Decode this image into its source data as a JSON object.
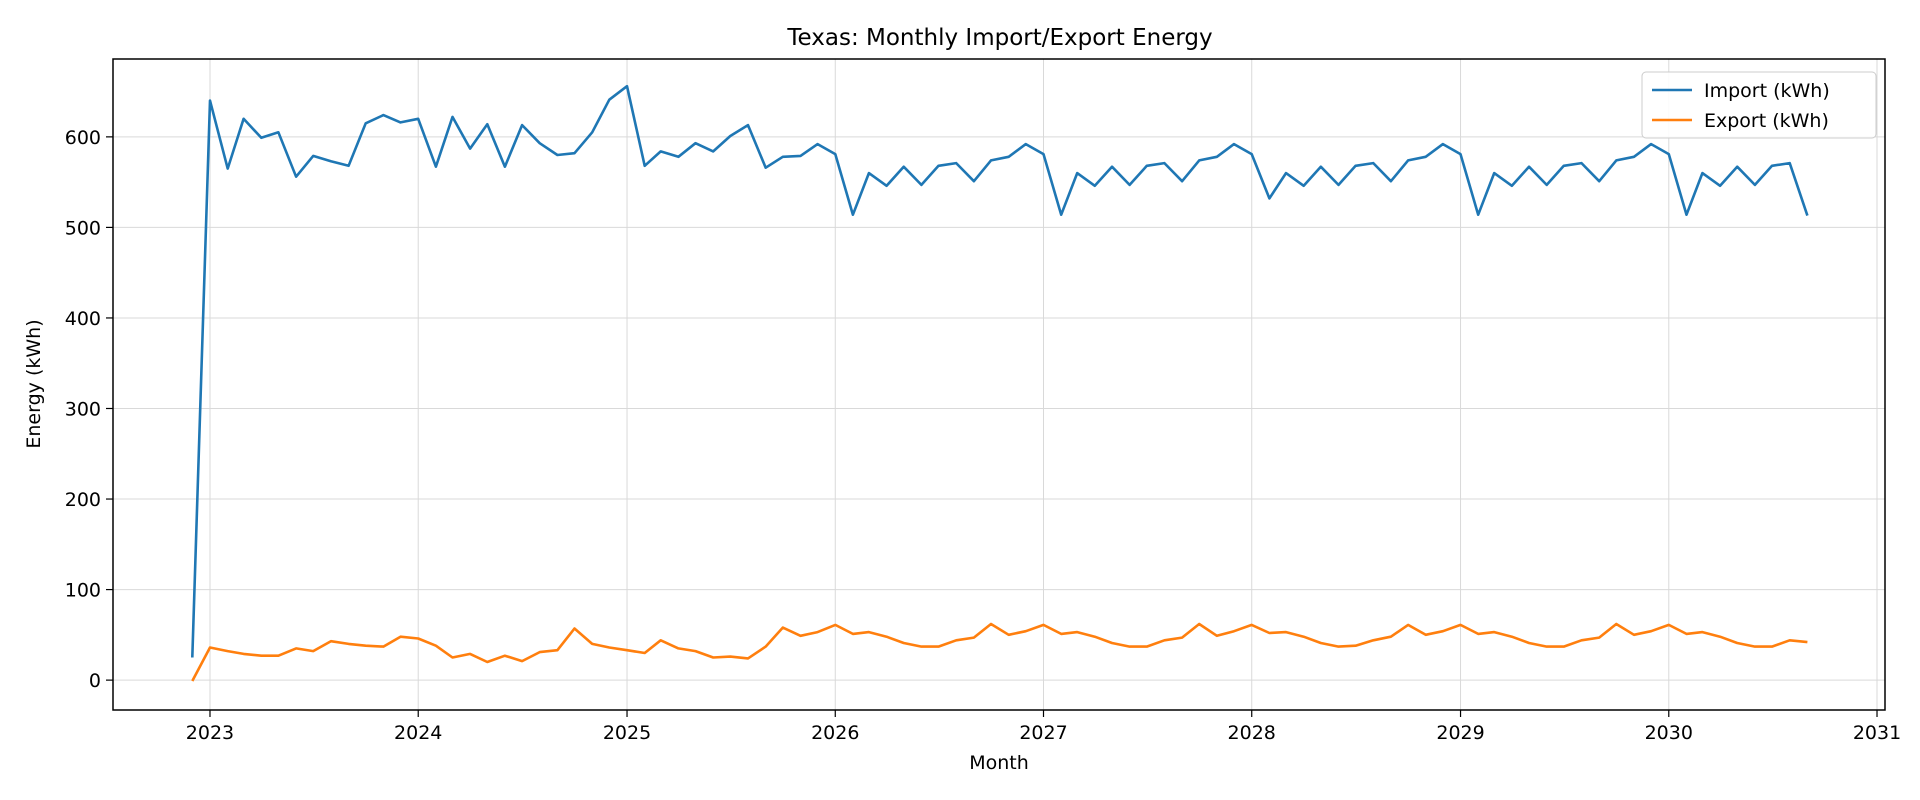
{
  "chart_data": {
    "type": "line",
    "title": "Texas: Monthly Import/Export Energy",
    "xlabel": "Month",
    "ylabel": "Energy (kWh)",
    "xlim": [
      "2022-07-15",
      "2031-01-15"
    ],
    "ylim": [
      -33,
      686
    ],
    "x_ticks": [
      "2023",
      "2024",
      "2025",
      "2026",
      "2027",
      "2028",
      "2029",
      "2030",
      "2031"
    ],
    "y_ticks": [
      0,
      100,
      200,
      300,
      400,
      500,
      600
    ],
    "grid": true,
    "legend_position": "top-right",
    "start_month": "2022-12",
    "series": [
      {
        "name": "Import (kWh)",
        "color": "#1f77b4",
        "values": [
          25,
          640,
          565,
          620,
          599,
          605,
          556,
          579,
          573,
          568,
          615,
          624,
          616,
          620,
          567,
          622,
          587,
          614,
          567,
          613,
          593,
          580,
          582,
          605,
          641,
          656,
          568,
          584,
          578,
          593,
          584,
          601,
          613,
          566,
          578,
          579,
          592,
          581,
          514,
          560,
          546,
          567,
          547,
          568,
          571,
          551,
          574,
          578,
          592,
          581,
          514,
          560,
          546,
          567,
          547,
          568,
          571,
          551,
          574,
          578,
          592,
          581,
          532,
          560,
          546,
          567,
          547,
          568,
          571,
          551,
          574,
          578,
          592,
          581,
          514,
          560,
          546,
          567,
          547,
          568,
          571,
          551,
          574,
          578,
          592,
          581,
          514,
          560,
          546,
          567,
          547,
          568,
          571,
          513
        ]
      },
      {
        "name": "Export (kWh)",
        "color": "#ff7f0e",
        "values": [
          -1,
          36,
          32,
          29,
          27,
          27,
          35,
          32,
          43,
          40,
          38,
          37,
          48,
          46,
          38,
          25,
          29,
          20,
          27,
          21,
          31,
          33,
          57,
          40,
          36,
          33,
          30,
          44,
          35,
          32,
          25,
          26,
          24,
          37,
          58,
          49,
          53,
          61,
          51,
          53,
          48,
          41,
          37,
          37,
          44,
          47,
          62,
          50,
          54,
          61,
          51,
          53,
          48,
          41,
          37,
          37,
          44,
          47,
          62,
          49,
          54,
          61,
          52,
          53,
          48,
          41,
          37,
          38,
          44,
          48,
          61,
          50,
          54,
          61,
          51,
          53,
          48,
          41,
          37,
          37,
          44,
          47,
          62,
          50,
          54,
          61,
          51,
          53,
          48,
          41,
          37,
          37,
          44,
          42
        ]
      }
    ]
  }
}
